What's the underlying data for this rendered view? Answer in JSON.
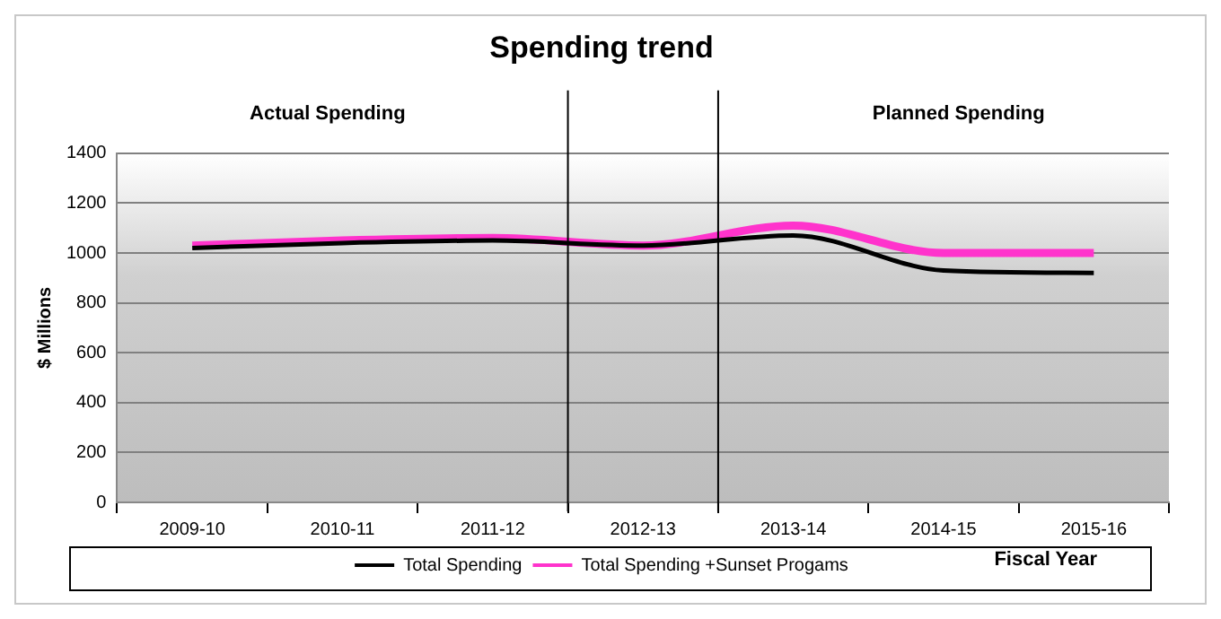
{
  "chart_data": {
    "type": "line",
    "title": "Spending trend",
    "xlabel": "Fiscal Year",
    "ylabel": "$ Millions",
    "categories": [
      "2009-10",
      "2010-11",
      "2011-12",
      "2012-13",
      "2013-14",
      "2014-15",
      "2015-16"
    ],
    "series": [
      {
        "name": "Total Spending",
        "color": "#000000",
        "values": [
          1020,
          1040,
          1050,
          1030,
          1070,
          930,
          920
        ]
      },
      {
        "name": "Total Spending +Sunset Progams",
        "color": "#ff33cc",
        "values": [
          1030,
          1050,
          1060,
          1030,
          1110,
          1000,
          1000
        ]
      }
    ],
    "ylim": [
      0,
      1400
    ],
    "yticks": [
      0,
      200,
      400,
      600,
      800,
      1000,
      1200,
      1400
    ],
    "annotations": [
      "Actual Spending",
      "Planned Spending"
    ],
    "grid": "y",
    "legend": "bottom",
    "marker": "none",
    "line_style": "solid"
  }
}
